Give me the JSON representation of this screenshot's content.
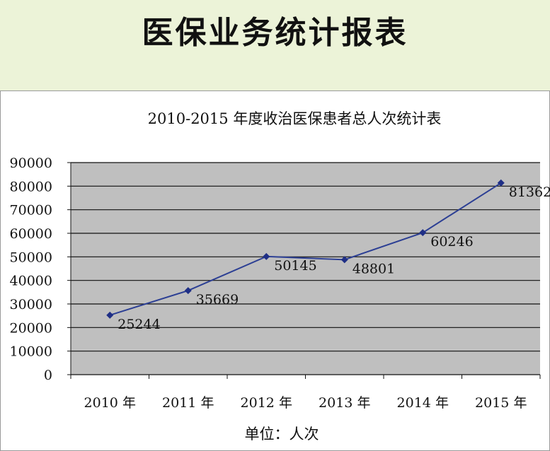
{
  "page": {
    "title": "医保业务统计报表"
  },
  "chart_data": {
    "type": "line",
    "title": "2010-2015 年度收治医保患者总人次统计表",
    "xlabel": "单位：人次",
    "ylabel": "",
    "categories": [
      "2010 年",
      "2011 年",
      "2012 年",
      "2013 年",
      "2014 年",
      "2015 年"
    ],
    "series": [
      {
        "values": [
          25244,
          35669,
          50145,
          48801,
          60246,
          81362
        ]
      }
    ],
    "data_labels": [
      "25244",
      "35669",
      "50145",
      "48801",
      "60246",
      "81362"
    ],
    "ylim": [
      0,
      90000
    ],
    "yticks": [
      0,
      10000,
      20000,
      30000,
      40000,
      50000,
      60000,
      70000,
      80000,
      90000
    ],
    "ytick_labels": [
      "0",
      "10000",
      "20000",
      "30000",
      "40000",
      "50000",
      "60000",
      "70000",
      "80000",
      "90000"
    ],
    "grid": true,
    "legend": "none",
    "colors": {
      "line": "#2c3f94",
      "marker": "#1f2f86",
      "plot_background": "#bfbfbf",
      "gridline": "#111111",
      "banner_background": "#ecf3d8"
    }
  }
}
